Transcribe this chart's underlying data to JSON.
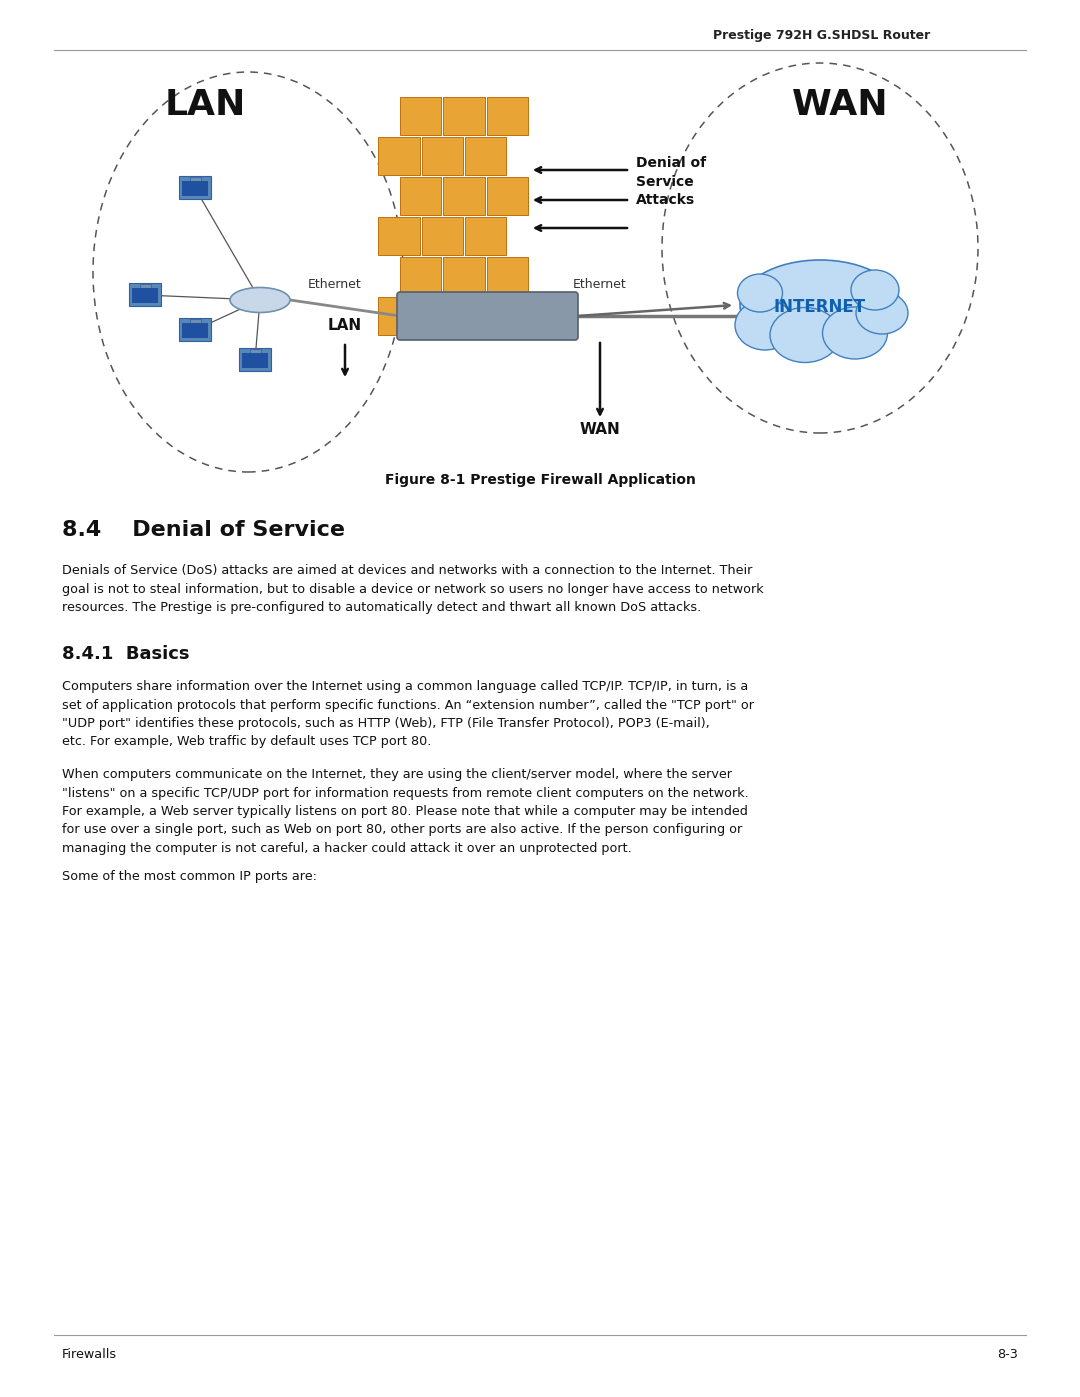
{
  "header_text": "Prestige 792H G.SHDSL Router",
  "figure_caption": "Figure 8-1 Prestige Firewall Application",
  "section_title": "8.4    Denial of Service",
  "subsection_title": "8.4.1  Basics",
  "para1": "Denials of Service (DoS) attacks are aimed at devices and networks with a connection to the Internet. Their\ngoal is not to steal information, but to disable a device or network so users no longer have access to network\nresources. The Prestige is pre-configured to automatically detect and thwart all known DoS attacks.",
  "para2": "Computers share information over the Internet using a common language called TCP/IP. TCP/IP, in turn, is a\nset of application protocols that perform specific functions. An “extension number”, called the \"TCP port\" or\n\"UDP port\" identifies these protocols, such as HTTP (Web), FTP (File Transfer Protocol), POP3 (E-mail),\netc. For example, Web traffic by default uses TCP port 80.",
  "para3": "When computers communicate on the Internet, they are using the client/server model, where the server\n\"listens\" on a specific TCP/UDP port for information requests from remote client computers on the network.\nFor example, a Web server typically listens on port 80. Please note that while a computer may be intended\nfor use over a single port, such as Web on port 80, other ports are also active. If the person configuring or\nmanaging the computer is not careful, a hacker could attack it over an unprotected port.",
  "para4": "Some of the most common IP ports are:",
  "footer_left": "Firewalls",
  "footer_right": "8-3",
  "bg_color": "#ffffff",
  "text_color": "#000000",
  "line_color": "#999999"
}
